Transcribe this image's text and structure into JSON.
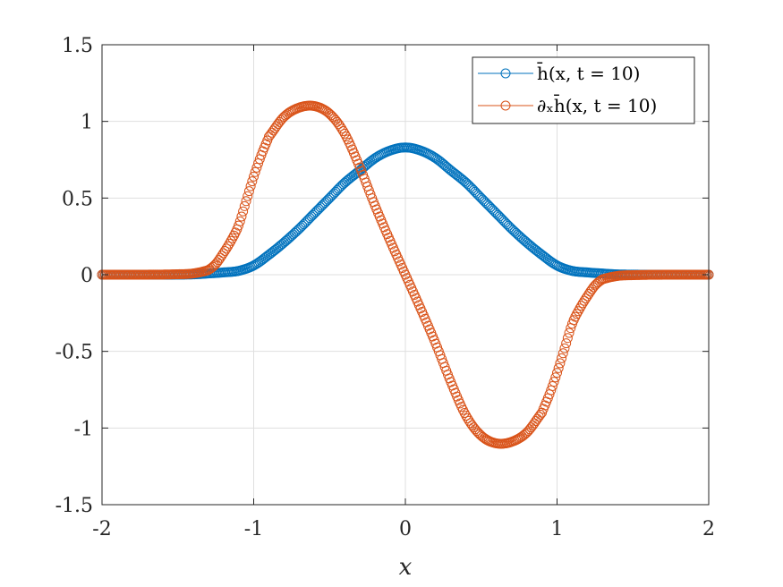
{
  "chart_data": {
    "type": "scatter",
    "title": "",
    "xlabel": "x",
    "ylabel": "",
    "xlim": [
      -2,
      2
    ],
    "ylim": [
      -1.5,
      1.5
    ],
    "xticks": [
      "-2",
      "-1",
      "0",
      "1",
      "2"
    ],
    "yticks": [
      "1.5",
      "1",
      "0.5",
      "0",
      "-0.5",
      "-1",
      "-1.5"
    ],
    "grid": true,
    "legend_position": "top-right",
    "series": [
      {
        "name": "h̄(x, t = 10)",
        "color": "#0072BD",
        "marker": "circle-open",
        "x": [
          -2.0,
          -1.8,
          -1.6,
          -1.4,
          -1.3,
          -1.2,
          -1.1,
          -1.0,
          -0.9,
          -0.8,
          -0.7,
          -0.6,
          -0.5,
          -0.4,
          -0.3,
          -0.2,
          -0.1,
          0.0,
          0.1,
          0.2,
          0.3,
          0.4,
          0.5,
          0.6,
          0.7,
          0.8,
          0.9,
          1.0,
          1.1,
          1.2,
          1.3,
          1.4,
          1.6,
          1.8,
          2.0
        ],
        "y": [
          0.0,
          0.0,
          0.0,
          0.002,
          0.008,
          0.015,
          0.025,
          0.06,
          0.13,
          0.21,
          0.3,
          0.4,
          0.5,
          0.6,
          0.68,
          0.76,
          0.81,
          0.83,
          0.81,
          0.76,
          0.68,
          0.6,
          0.5,
          0.4,
          0.3,
          0.21,
          0.13,
          0.06,
          0.025,
          0.015,
          0.008,
          0.002,
          0.0,
          0.0,
          0.0
        ]
      },
      {
        "name": "∂ₓh̄(x, t = 10)",
        "color": "#D95319",
        "marker": "circle-open",
        "x": [
          -2.0,
          -1.8,
          -1.6,
          -1.5,
          -1.4,
          -1.3,
          -1.25,
          -1.2,
          -1.15,
          -1.1,
          -1.05,
          -1.0,
          -0.95,
          -0.9,
          -0.8,
          -0.7,
          -0.6,
          -0.5,
          -0.4,
          -0.3,
          -0.2,
          -0.1,
          0.0,
          0.1,
          0.2,
          0.3,
          0.4,
          0.5,
          0.6,
          0.7,
          0.8,
          0.9,
          0.95,
          1.0,
          1.05,
          1.1,
          1.15,
          1.2,
          1.25,
          1.3,
          1.4,
          1.5,
          1.6,
          1.8,
          2.0
        ],
        "y": [
          0.0,
          0.0,
          0.001,
          0.003,
          0.008,
          0.03,
          0.07,
          0.14,
          0.22,
          0.32,
          0.48,
          0.64,
          0.78,
          0.9,
          1.03,
          1.09,
          1.1,
          1.05,
          0.92,
          0.7,
          0.45,
          0.22,
          0.0,
          -0.22,
          -0.45,
          -0.7,
          -0.92,
          -1.05,
          -1.1,
          -1.09,
          -1.03,
          -0.9,
          -0.78,
          -0.64,
          -0.48,
          -0.32,
          -0.22,
          -0.14,
          -0.07,
          -0.03,
          -0.008,
          -0.003,
          -0.001,
          0.0,
          0.0
        ]
      }
    ]
  }
}
